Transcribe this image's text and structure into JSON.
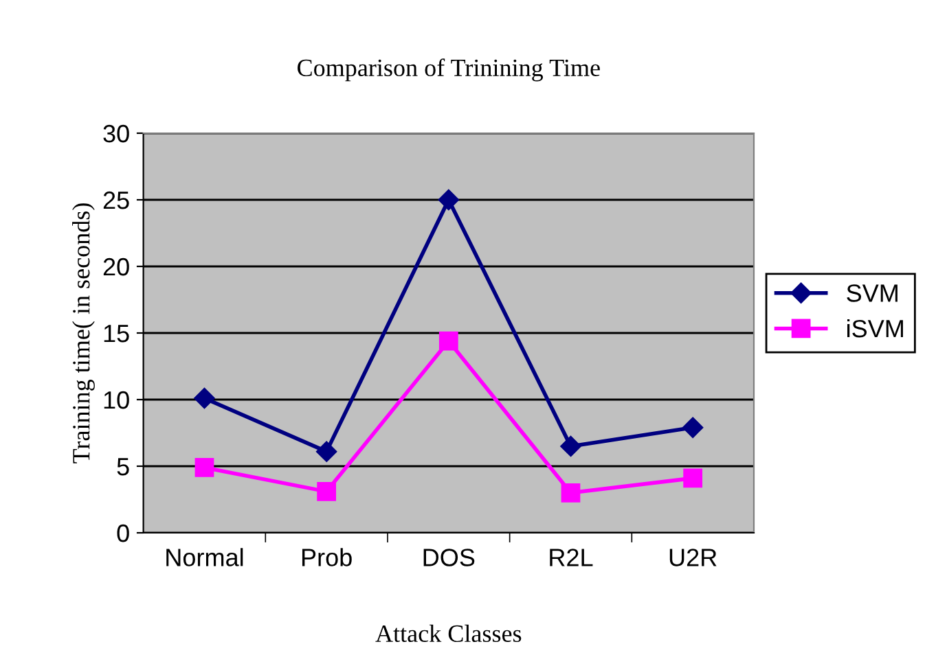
{
  "chart_data": {
    "type": "line",
    "title": "Comparison of Trinining Time",
    "xlabel": "Attack Classes",
    "ylabel": "Training time( in seconds)",
    "categories": [
      "Normal",
      "Prob",
      "DOS",
      "R2L",
      "U2R"
    ],
    "series": [
      {
        "name": "SVM",
        "color": "#000080",
        "marker": "diamond",
        "values": [
          10.1,
          6.1,
          25,
          6.5,
          7.9
        ]
      },
      {
        "name": "iSVM",
        "color": "#ff00ff",
        "marker": "square",
        "values": [
          4.9,
          3.1,
          14.4,
          3.0,
          4.1
        ]
      }
    ],
    "ylim": [
      0,
      30
    ],
    "yticks": [
      0,
      5,
      10,
      15,
      20,
      25,
      30
    ],
    "grid": "y",
    "legend": "right",
    "line_style": "solid"
  }
}
